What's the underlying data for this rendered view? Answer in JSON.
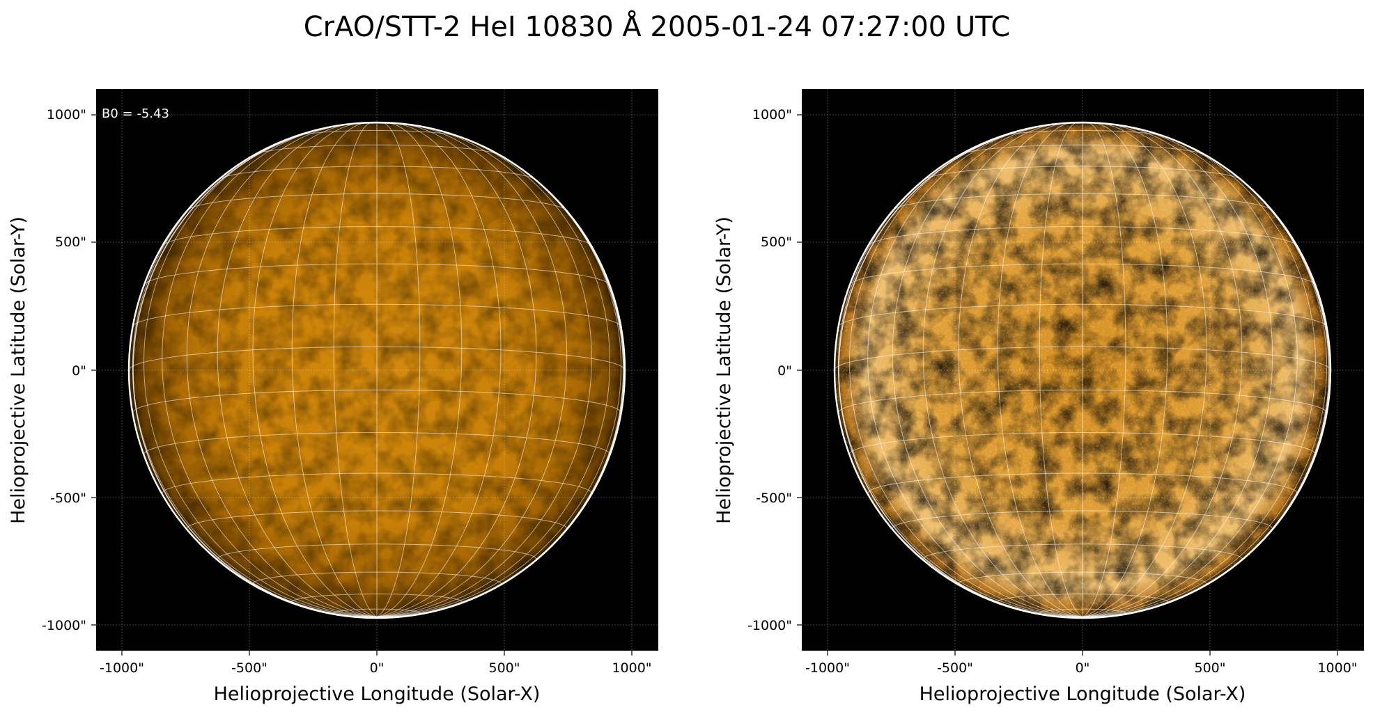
{
  "title": "CrAO/STT-2 HeI 10830 Å 2005-01-24 07:27:00 UTC",
  "panels": [
    {
      "xlabel": "Helioprojective Longitude (Solar-X)",
      "ylabel": "Helioprojective Latitude (Solar-Y)",
      "xticks": [
        "-1000\"",
        "-500\"",
        "0\"",
        "500\"",
        "1000\""
      ],
      "yticks": [
        "1000\"",
        "500\"",
        "0\"",
        "-500\"",
        "-1000\""
      ],
      "annotation": "B0 = -5.43",
      "style": "original"
    },
    {
      "xlabel": "Helioprojective Longitude (Solar-X)",
      "ylabel": "Helioprojective Latitude (Solar-Y)",
      "xticks": [
        "-1000\"",
        "-500\"",
        "0\"",
        "500\"",
        "1000\""
      ],
      "yticks": [
        "1000\"",
        "500\"",
        "0\"",
        "-500\"",
        "-1000\""
      ],
      "style": "enhanced"
    }
  ],
  "colors": {
    "disk": "#d2870a",
    "disk_enhanced": "#e8a530",
    "background": "#000000",
    "grid": "#ffffff"
  }
}
